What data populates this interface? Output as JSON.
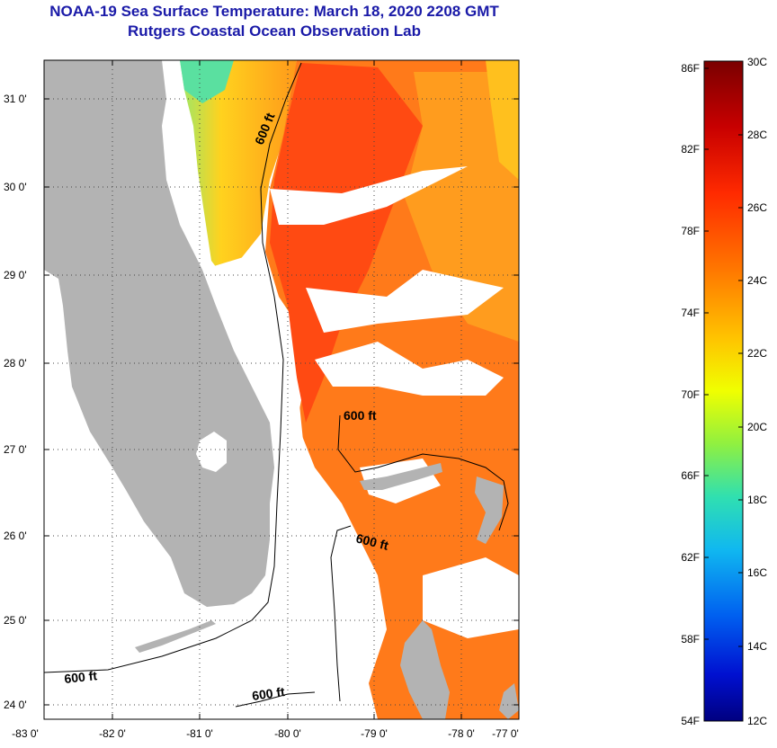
{
  "header": {
    "title_line1": "NOAA-19 Sea Surface Temperature:  March 18, 2020 2208 GMT",
    "title_line2": "Rutgers Coastal Ocean Observation Lab"
  },
  "map": {
    "lat_labels": [
      "31 0'",
      "30 0'",
      "29 0'",
      "28 0'",
      "27 0'",
      "26 0'",
      "25 0'",
      "24 0'"
    ],
    "lon_labels": [
      "-83 0'",
      "-82 0'",
      "-81 0'",
      "-80 0'",
      "-79 0'",
      "-78 0'",
      "-77 0'"
    ],
    "contour_labels": [
      "600 ft",
      "600 ft",
      "600 ft",
      "600 ft",
      "600 ft"
    ],
    "colors": {
      "land": "#b3b3b3",
      "warm": "#ff5a14",
      "orange": "#ff8c1a",
      "yellow": "#ffd21e",
      "cyan": "#3cdcb4"
    }
  },
  "colorbar": {
    "fahrenheit_labels": [
      "86F",
      "82F",
      "78F",
      "74F",
      "70F",
      "66F",
      "62F",
      "58F",
      "54F"
    ],
    "celsius_labels": [
      "30C",
      "28C",
      "26C",
      "24C",
      "22C",
      "20C",
      "18C",
      "16C",
      "14C",
      "12C"
    ]
  }
}
